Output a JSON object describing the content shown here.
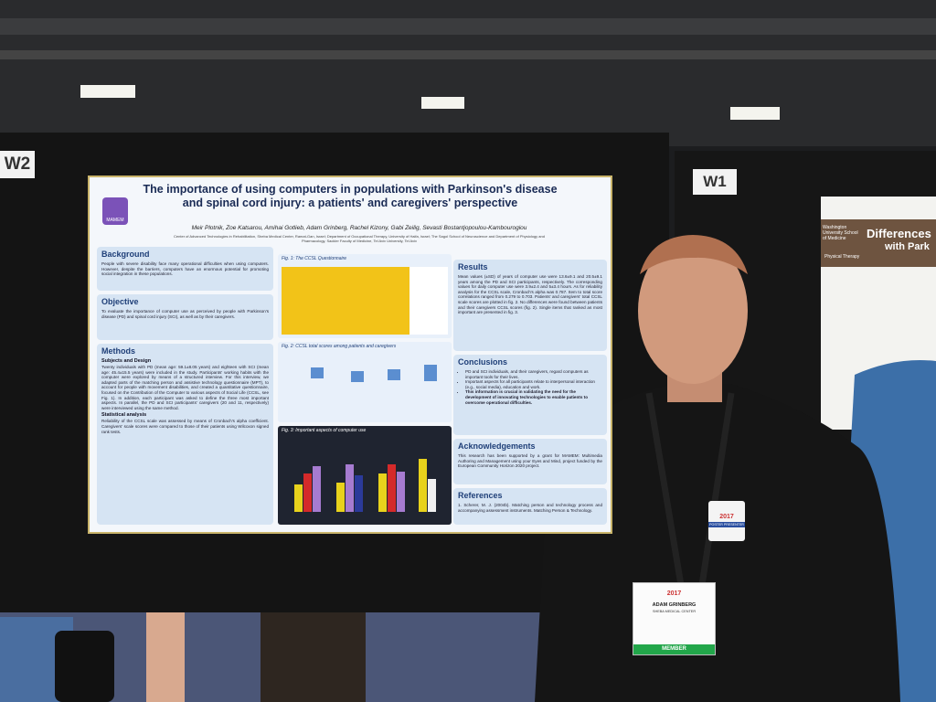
{
  "boards": {
    "left_label": "W2",
    "right_label": "W1"
  },
  "poster": {
    "title": "The importance of using computers in populations with Parkinson's disease and spinal cord injury: a patients' and caregivers' perspective",
    "logo": "MAMEM",
    "authors": "Meir Plotnik, Zoe Katsarou, Amihai Gotlieb, Adam Grinberg, Rachel Kizony, Gabi Zeilig, Sevasti Bostantjopoulou-Kambourogiou",
    "affiliations": "Center of Advanced Technologies in Rehabilitation, Sheba Medical Center, Ramat-Gan, Israel; Department of Occupational Therapy, University of Haifa, Israel; The Sagol School of Neuroscience and Department of Physiology and Pharmacology, Sackler Faculty of Medicine, Tel Aviv University, Tel Aviv",
    "sections": {
      "background": {
        "heading": "Background",
        "text": "People with severe disability face many operational difficulties when using computers. However, despite the barriers, computers have an enormous potential for promoting social integration in these populations."
      },
      "objective": {
        "heading": "Objective",
        "text": "To evaluate the importance of computer use as perceived by people with Parkinson's disease (PD) and spinal cord injury (SCI), as well as by their caregivers."
      },
      "methods": {
        "heading": "Methods",
        "subheading": "Subjects and Design",
        "text": "Twenty individuals with PD (mean age: 59.1±8.05 years) and eighteen with SCI (mean age: 45.4±15.5 years) were included in the study. Participants' working habits with the computer were explored by means of a structured interview. For this interview, we adapted parts of the matching person and assistive technology questionnaire (MPT), to account for people with movement disabilities, and created a quantitative questionnaire, focused on the Contribution of the Computer to various aspects of Social Life (CCSL, see Fig. 1). In addition, each participant was asked to define the three most important aspects. In parallel, the PD and SCI participants' caregivers (20 and 11, respectively) were interviewed using the same method.",
        "subheading2": "Statistical analysis",
        "text2": "Reliability of the CCSL scale was assessed by means of Cronbach's alpha coefficient. Caregivers' scale scores were compared to those of their patients using Wilcoxon signed rank tests."
      },
      "results": {
        "heading": "Results",
        "text": "Mean values (±SD) of years of computer use were 13.6±9.1 and 20.5±9.1 years among the PD and SCI participants, respectively. The corresponding values for daily computer use were 3.9±2.4 and 5±3.4 hours. As for reliability analysis for the CCSL scale, Cronbach's alpha was 0.787. Item to total score correlations ranged from 0.279 to 0.703. Patients' and caregivers' total CCSL scale scores are plotted in fig. 2. No differences were found between patients and their caregivers CCSL scores (fig. 2). Single items that ranked as most important are presented in fig. 3."
      },
      "conclusions": {
        "heading": "Conclusions",
        "items": [
          "PD and SCI individuals, and their caregivers, regard computers as important tools for their lives.",
          "Important aspects for all participants relate to interpersonal interaction (e.g., social media), education and work.",
          "This information is crucial in validating the need for the development of innovating technologies to enable patients to overcome operational difficulties."
        ]
      },
      "acknowledgements": {
        "heading": "Acknowledgements",
        "text": "This research has been supported by a grant for MAMEM: Multimedia Authoring and Management using your Eyes and Mind, project funded by the European Community Horizon 2020 project."
      },
      "references": {
        "heading": "References",
        "text": "1. Scherer, M. J. (2004b). Matching person and technology process and accompanying assessment instruments. Matching Person & Technology."
      }
    },
    "figures": {
      "fig1": "Fig. 1: The CCSL Questionnaire",
      "fig2": "Fig. 2: CCSL total scores among patients and caregivers",
      "fig3": "Fig. 3: Important aspects of computer use"
    }
  },
  "neighbor_poster": {
    "title_start": "Differences",
    "title_end": "with Park",
    "school": "Washington University School of Medicine",
    "dept": "Physical Therapy"
  },
  "badge": {
    "year": "2017",
    "name": "ADAM GRINBERG",
    "org": "SHEBA MEDICAL CENTER",
    "type": "MEMBER"
  },
  "ribbon": {
    "year": "2017",
    "text": "POSTER PRESENTER"
  }
}
